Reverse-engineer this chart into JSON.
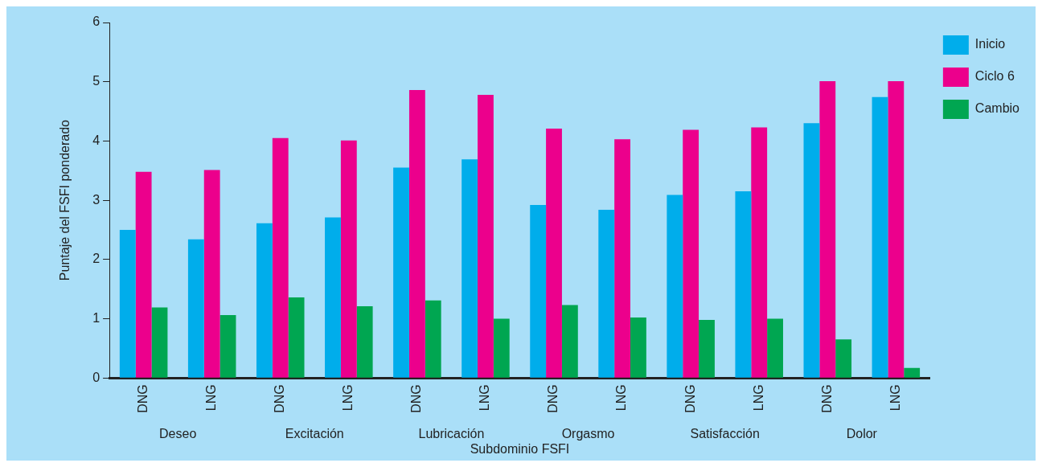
{
  "chart_data": {
    "type": "bar",
    "xlabel": "Subdominio FSFI",
    "ylabel": "Puntaje del FSFI ponderado",
    "categories": [
      "DNG",
      "LNG",
      "DNG",
      "LNG",
      "DNG",
      "LNG",
      "DNG",
      "LNG",
      "DNG",
      "LNG",
      "DNG",
      "LNG"
    ],
    "annotations": [
      "Deseo",
      "Excitación",
      "Lubricación",
      "Orgasmo",
      "Satisfacción",
      "Dolor"
    ],
    "series": [
      {
        "name": "Inicio",
        "color": "#00adeb",
        "values": [
          2.5,
          2.34,
          2.61,
          2.71,
          3.55,
          3.69,
          2.92,
          2.84,
          3.09,
          3.15,
          4.3,
          4.74
        ]
      },
      {
        "name": "Ciclo 6",
        "color": "#ec008c",
        "values": [
          3.48,
          3.51,
          4.05,
          4.01,
          4.86,
          4.78,
          4.21,
          4.03,
          4.19,
          4.23,
          5.01,
          5.01
        ]
      },
      {
        "name": "Cambio",
        "color": "#00a651",
        "values": [
          1.19,
          1.06,
          1.36,
          1.21,
          1.31,
          1.0,
          1.23,
          1.02,
          0.98,
          1.0,
          0.65,
          0.17
        ]
      }
    ],
    "ylim": [
      0,
      6
    ],
    "yticks": [
      0,
      1,
      2,
      3,
      4,
      5,
      6
    ],
    "grid": false,
    "legend": "top right"
  }
}
